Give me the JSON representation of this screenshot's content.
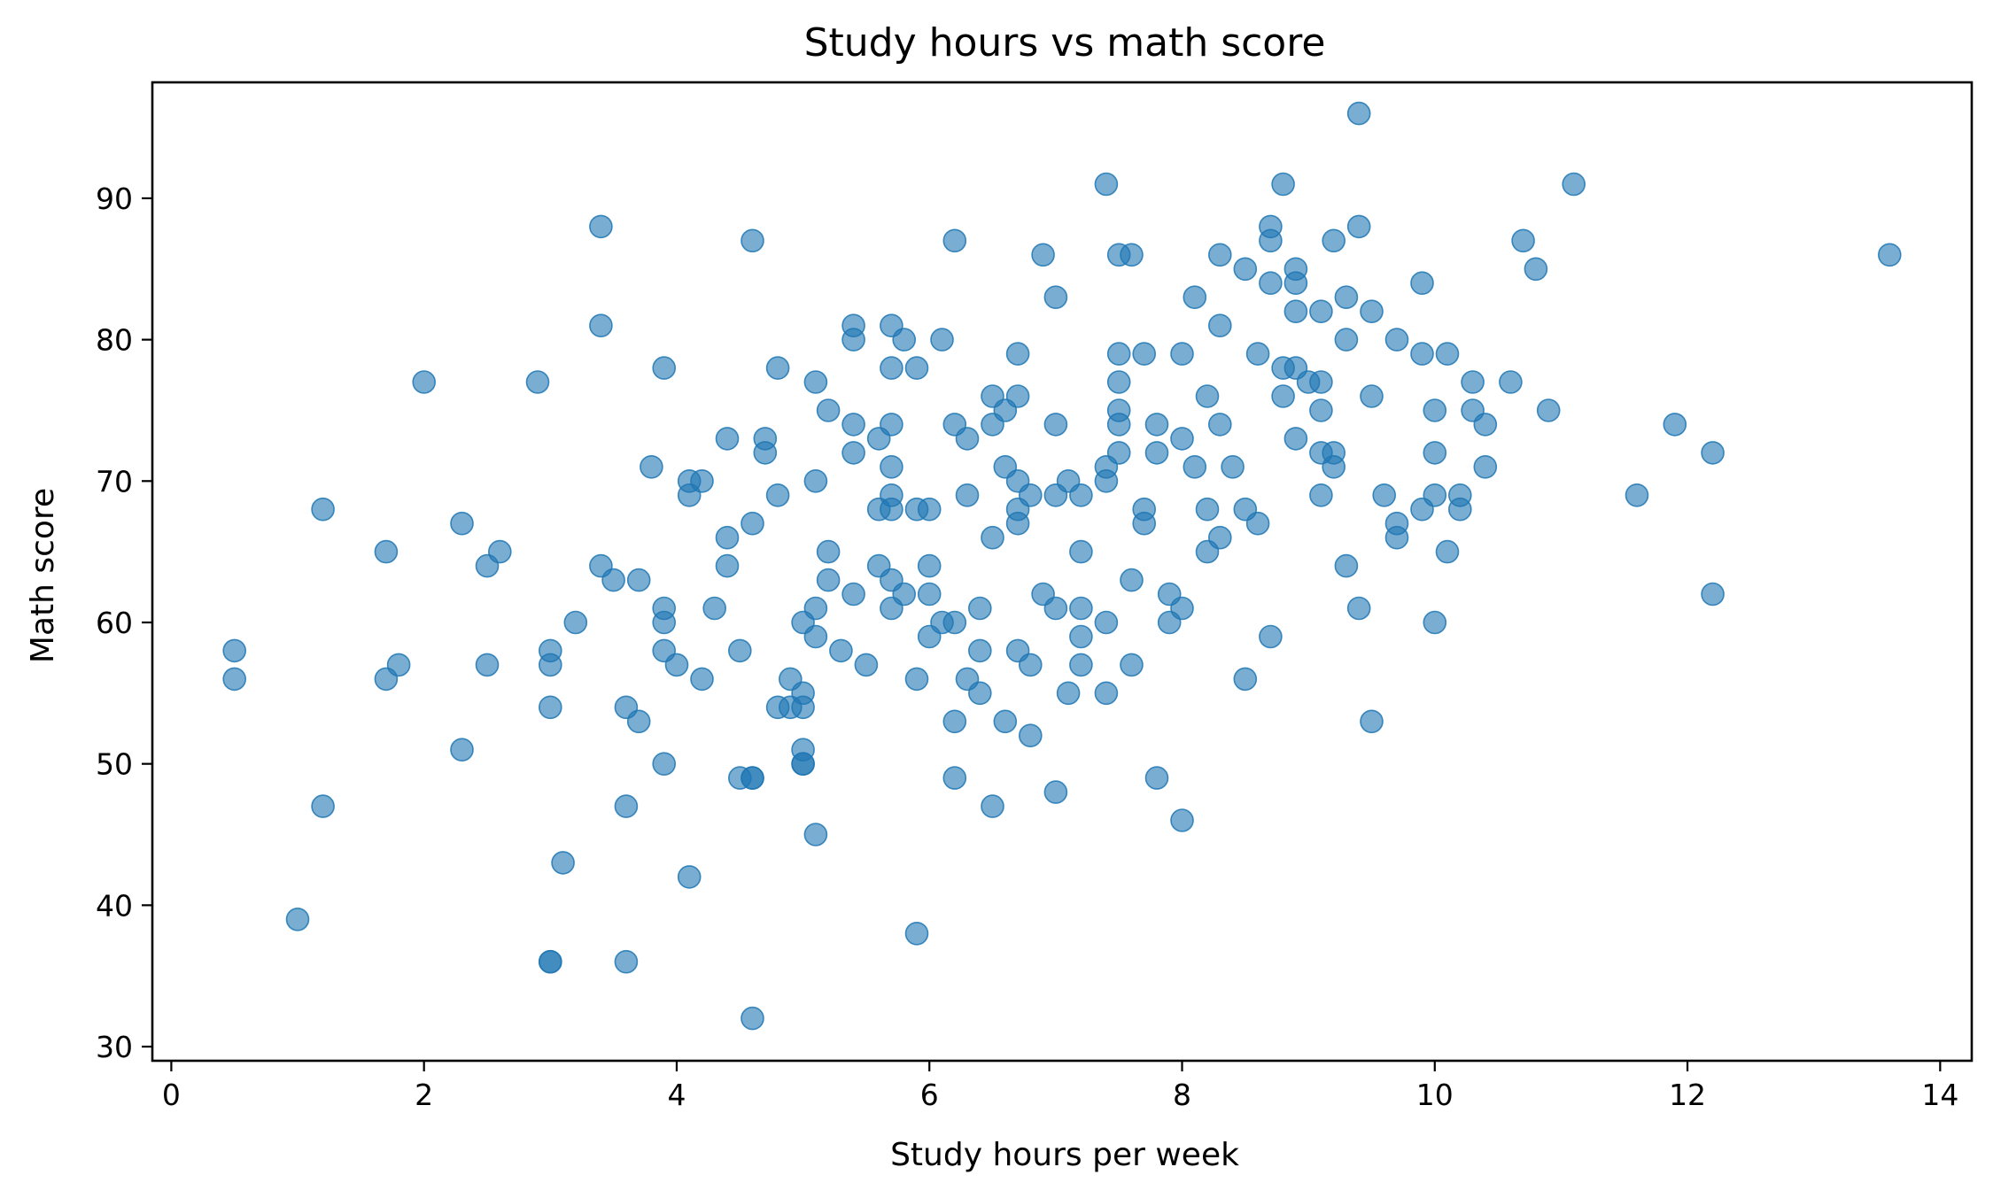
{
  "chart_data": {
    "type": "scatter",
    "title": "Study hours vs math score",
    "xlabel": "Study hours per week",
    "ylabel": "Math score",
    "xlim": [
      -0.15,
      14.25
    ],
    "ylim": [
      29,
      98.2
    ],
    "xticks": [
      0,
      2,
      4,
      6,
      8,
      10,
      12,
      14
    ],
    "yticks": [
      30,
      40,
      50,
      60,
      70,
      80,
      90
    ],
    "grid": false,
    "marker_color": "#1f77b4",
    "marker_alpha": 0.6,
    "series": [
      {
        "x": [
          0.5,
          0.5,
          1.0,
          1.2,
          1.2,
          1.7,
          1.7,
          1.8,
          2.0,
          2.3,
          2.3,
          2.5,
          2.5,
          2.6,
          2.9,
          3.0,
          3.0,
          3.0,
          3.0,
          3.0,
          3.1,
          3.2,
          3.4,
          3.4,
          3.4,
          3.5,
          3.6,
          3.6,
          3.6,
          3.7,
          3.7,
          3.8,
          3.9,
          3.9,
          3.9,
          3.9,
          3.9,
          4.0,
          4.1,
          4.1,
          4.1,
          4.2,
          4.2,
          4.3,
          4.4,
          4.4,
          4.4,
          4.5,
          4.5,
          4.6,
          4.6,
          4.6,
          4.6,
          4.6,
          4.7,
          4.7,
          4.8,
          4.8,
          4.8,
          4.9,
          4.9,
          5.0,
          5.0,
          5.0,
          5.0,
          5.0,
          5.0,
          5.1,
          5.1,
          5.1,
          5.1,
          5.1,
          5.2,
          5.2,
          5.2,
          5.3,
          5.4,
          5.4,
          5.4,
          5.4,
          5.4,
          5.5,
          5.6,
          5.6,
          5.6,
          5.7,
          5.7,
          5.7,
          5.7,
          5.7,
          5.7,
          5.7,
          5.7,
          5.8,
          5.8,
          5.9,
          5.9,
          5.9,
          5.9,
          6.0,
          6.0,
          6.0,
          6.0,
          6.1,
          6.1,
          6.2,
          6.2,
          6.2,
          6.2,
          6.2,
          6.3,
          6.3,
          6.3,
          6.4,
          6.4,
          6.4,
          6.5,
          6.5,
          6.5,
          6.5,
          6.6,
          6.6,
          6.6,
          6.7,
          6.7,
          6.7,
          6.7,
          6.7,
          6.7,
          6.8,
          6.8,
          6.8,
          6.9,
          6.9,
          7.0,
          7.0,
          7.0,
          7.0,
          7.0,
          7.1,
          7.1,
          7.2,
          7.2,
          7.2,
          7.2,
          7.2,
          7.4,
          7.4,
          7.4,
          7.4,
          7.4,
          7.5,
          7.5,
          7.5,
          7.5,
          7.5,
          7.5,
          7.6,
          7.6,
          7.6,
          7.7,
          7.7,
          7.7,
          7.8,
          7.8,
          7.8,
          7.9,
          7.9,
          8.0,
          8.0,
          8.0,
          8.0,
          8.1,
          8.1,
          8.2,
          8.2,
          8.2,
          8.3,
          8.3,
          8.3,
          8.3,
          8.4,
          8.5,
          8.5,
          8.5,
          8.6,
          8.6,
          8.7,
          8.7,
          8.7,
          8.7,
          8.8,
          8.8,
          8.8,
          8.9,
          8.9,
          8.9,
          8.9,
          8.9,
          9.0,
          9.1,
          9.1,
          9.1,
          9.1,
          9.1,
          9.2,
          9.2,
          9.2,
          9.3,
          9.3,
          9.3,
          9.4,
          9.4,
          9.4,
          9.5,
          9.5,
          9.5,
          9.6,
          9.7,
          9.7,
          9.7,
          9.9,
          9.9,
          9.9,
          10.0,
          10.0,
          10.0,
          10.0,
          10.1,
          10.1,
          10.2,
          10.2,
          10.3,
          10.3,
          10.4,
          10.4,
          10.6,
          10.7,
          10.8,
          10.9,
          11.1,
          11.6,
          11.9,
          12.2,
          12.2,
          13.6
        ],
        "y": [
          58,
          56,
          39,
          68,
          47,
          65,
          56,
          57,
          77,
          67,
          51,
          64,
          57,
          65,
          77,
          58,
          57,
          54,
          36,
          36,
          43,
          60,
          88,
          81,
          64,
          63,
          54,
          47,
          36,
          63,
          53,
          71,
          78,
          61,
          60,
          58,
          50,
          57,
          70,
          69,
          42,
          70,
          56,
          61,
          73,
          66,
          64,
          58,
          49,
          87,
          67,
          49,
          49,
          32,
          73,
          72,
          78,
          69,
          54,
          56,
          54,
          60,
          55,
          54,
          51,
          50,
          50,
          77,
          70,
          61,
          59,
          45,
          75,
          65,
          63,
          58,
          81,
          80,
          74,
          72,
          62,
          57,
          73,
          68,
          64,
          81,
          78,
          74,
          71,
          69,
          68,
          63,
          61,
          62,
          80,
          78,
          68,
          56,
          38,
          68,
          64,
          62,
          59,
          80,
          60,
          87,
          74,
          60,
          53,
          49,
          73,
          69,
          56,
          61,
          58,
          55,
          76,
          74,
          66,
          47,
          75,
          71,
          53,
          79,
          76,
          70,
          68,
          67,
          58,
          69,
          57,
          52,
          86,
          62,
          83,
          74,
          69,
          61,
          48,
          70,
          55,
          69,
          65,
          61,
          59,
          57,
          91,
          71,
          70,
          60,
          55,
          86,
          79,
          77,
          75,
          74,
          72,
          86,
          63,
          57,
          79,
          68,
          67,
          74,
          72,
          49,
          62,
          60,
          79,
          73,
          61,
          46,
          83,
          71,
          76,
          68,
          65,
          86,
          81,
          74,
          66,
          71,
          85,
          68,
          56,
          79,
          67,
          88,
          87,
          84,
          59,
          91,
          78,
          76,
          85,
          84,
          82,
          78,
          73,
          77,
          82,
          77,
          75,
          72,
          69,
          87,
          72,
          71,
          83,
          80,
          64,
          96,
          88,
          61,
          82,
          76,
          53,
          69,
          80,
          67,
          66,
          84,
          79,
          68,
          75,
          72,
          69,
          60,
          79,
          65,
          69,
          68,
          77,
          75,
          74,
          71,
          77,
          87,
          85,
          75,
          91,
          69,
          74,
          72,
          62,
          86
        ]
      }
    ]
  }
}
